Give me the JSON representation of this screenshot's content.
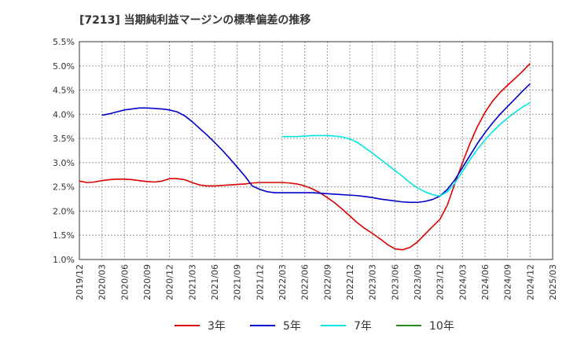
{
  "title": "[7213]  当期純利益マージンの標準偏差の推移",
  "chart_data": {
    "type": "line",
    "title": "[7213]  当期純利益マージンの標準偏差の推移",
    "xlabel": "",
    "ylabel": "",
    "x_ticks": [
      "2019/12",
      "2020/03",
      "2020/06",
      "2020/09",
      "2020/12",
      "2021/03",
      "2021/06",
      "2021/09",
      "2021/12",
      "2022/03",
      "2022/06",
      "2022/09",
      "2022/12",
      "2023/03",
      "2023/06",
      "2023/09",
      "2023/12",
      "2024/03",
      "2024/06",
      "2024/09",
      "2024/12",
      "2025/03"
    ],
    "y_ticks": [
      "1.0%",
      "1.5%",
      "2.0%",
      "2.5%",
      "3.0%",
      "3.5%",
      "4.0%",
      "4.5%",
      "5.0%",
      "5.5%"
    ],
    "ylim": [
      1.0,
      5.5
    ],
    "grid": true,
    "legend_position": "bottom",
    "series": [
      {
        "name": "3年",
        "color": "#dd0000",
        "points": [
          [
            "2019/12",
            2.62
          ],
          [
            "2020/01",
            2.59
          ],
          [
            "2020/02",
            2.6
          ],
          [
            "2020/03",
            2.63
          ],
          [
            "2020/04",
            2.65
          ],
          [
            "2020/05",
            2.66
          ],
          [
            "2020/06",
            2.66
          ],
          [
            "2020/07",
            2.65
          ],
          [
            "2020/08",
            2.63
          ],
          [
            "2020/09",
            2.61
          ],
          [
            "2020/10",
            2.6
          ],
          [
            "2020/11",
            2.62
          ],
          [
            "2020/12",
            2.67
          ],
          [
            "2021/01",
            2.67
          ],
          [
            "2021/02",
            2.65
          ],
          [
            "2021/03",
            2.59
          ],
          [
            "2021/04",
            2.54
          ],
          [
            "2021/05",
            2.52
          ],
          [
            "2021/06",
            2.52
          ],
          [
            "2021/07",
            2.53
          ],
          [
            "2021/08",
            2.54
          ],
          [
            "2021/09",
            2.55
          ],
          [
            "2021/10",
            2.56
          ],
          [
            "2021/11",
            2.58
          ],
          [
            "2021/12",
            2.59
          ],
          [
            "2022/01",
            2.59
          ],
          [
            "2022/02",
            2.59
          ],
          [
            "2022/03",
            2.59
          ],
          [
            "2022/04",
            2.58
          ],
          [
            "2022/05",
            2.56
          ],
          [
            "2022/06",
            2.52
          ],
          [
            "2022/07",
            2.46
          ],
          [
            "2022/08",
            2.38
          ],
          [
            "2022/09",
            2.28
          ],
          [
            "2022/10",
            2.17
          ],
          [
            "2022/11",
            2.04
          ],
          [
            "2022/12",
            1.9
          ],
          [
            "2023/01",
            1.76
          ],
          [
            "2023/02",
            1.64
          ],
          [
            "2023/03",
            1.54
          ],
          [
            "2023/04",
            1.43
          ],
          [
            "2023/05",
            1.31
          ],
          [
            "2023/06",
            1.22
          ],
          [
            "2023/07",
            1.2
          ],
          [
            "2023/08",
            1.25
          ],
          [
            "2023/09",
            1.36
          ],
          [
            "2023/10",
            1.52
          ],
          [
            "2023/11",
            1.68
          ],
          [
            "2023/12",
            1.83
          ],
          [
            "2024/01",
            2.13
          ],
          [
            "2024/02",
            2.58
          ],
          [
            "2024/03",
            3.0
          ],
          [
            "2024/04",
            3.4
          ],
          [
            "2024/05",
            3.75
          ],
          [
            "2024/06",
            4.04
          ],
          [
            "2024/07",
            4.27
          ],
          [
            "2024/08",
            4.45
          ],
          [
            "2024/09",
            4.6
          ],
          [
            "2024/10",
            4.74
          ],
          [
            "2024/11",
            4.89
          ],
          [
            "2024/12",
            5.05
          ]
        ]
      },
      {
        "name": "5年",
        "color": "#0000cc",
        "points": [
          [
            "2020/03",
            3.98
          ],
          [
            "2020/04",
            4.01
          ],
          [
            "2020/05",
            4.05
          ],
          [
            "2020/06",
            4.09
          ],
          [
            "2020/07",
            4.11
          ],
          [
            "2020/08",
            4.13
          ],
          [
            "2020/09",
            4.13
          ],
          [
            "2020/10",
            4.12
          ],
          [
            "2020/11",
            4.11
          ],
          [
            "2020/12",
            4.09
          ],
          [
            "2021/01",
            4.05
          ],
          [
            "2021/02",
            3.97
          ],
          [
            "2021/03",
            3.85
          ],
          [
            "2021/04",
            3.71
          ],
          [
            "2021/05",
            3.57
          ],
          [
            "2021/06",
            3.42
          ],
          [
            "2021/07",
            3.26
          ],
          [
            "2021/08",
            3.09
          ],
          [
            "2021/09",
            2.91
          ],
          [
            "2021/10",
            2.73
          ],
          [
            "2021/11",
            2.52
          ],
          [
            "2021/12",
            2.45
          ],
          [
            "2022/01",
            2.4
          ],
          [
            "2022/02",
            2.38
          ],
          [
            "2022/03",
            2.38
          ],
          [
            "2022/04",
            2.38
          ],
          [
            "2022/05",
            2.38
          ],
          [
            "2022/06",
            2.38
          ],
          [
            "2022/07",
            2.38
          ],
          [
            "2022/08",
            2.37
          ],
          [
            "2022/09",
            2.36
          ],
          [
            "2022/10",
            2.35
          ],
          [
            "2022/11",
            2.34
          ],
          [
            "2022/12",
            2.33
          ],
          [
            "2023/01",
            2.32
          ],
          [
            "2023/02",
            2.3
          ],
          [
            "2023/03",
            2.28
          ],
          [
            "2023/04",
            2.25
          ],
          [
            "2023/05",
            2.23
          ],
          [
            "2023/06",
            2.21
          ],
          [
            "2023/07",
            2.19
          ],
          [
            "2023/08",
            2.18
          ],
          [
            "2023/09",
            2.18
          ],
          [
            "2023/10",
            2.2
          ],
          [
            "2023/11",
            2.24
          ],
          [
            "2023/12",
            2.31
          ],
          [
            "2024/01",
            2.45
          ],
          [
            "2024/02",
            2.65
          ],
          [
            "2024/03",
            2.9
          ],
          [
            "2024/04",
            3.15
          ],
          [
            "2024/05",
            3.4
          ],
          [
            "2024/06",
            3.62
          ],
          [
            "2024/07",
            3.82
          ],
          [
            "2024/08",
            4.0
          ],
          [
            "2024/09",
            4.16
          ],
          [
            "2024/10",
            4.32
          ],
          [
            "2024/11",
            4.48
          ],
          [
            "2024/12",
            4.63
          ]
        ]
      },
      {
        "name": "7年",
        "color": "#00e5e5",
        "points": [
          [
            "2022/03",
            3.54
          ],
          [
            "2022/04",
            3.54
          ],
          [
            "2022/05",
            3.54
          ],
          [
            "2022/06",
            3.55
          ],
          [
            "2022/07",
            3.56
          ],
          [
            "2022/08",
            3.56
          ],
          [
            "2022/09",
            3.56
          ],
          [
            "2022/10",
            3.55
          ],
          [
            "2022/11",
            3.53
          ],
          [
            "2022/12",
            3.49
          ],
          [
            "2023/01",
            3.42
          ],
          [
            "2023/02",
            3.31
          ],
          [
            "2023/03",
            3.2
          ],
          [
            "2023/04",
            3.08
          ],
          [
            "2023/05",
            2.96
          ],
          [
            "2023/06",
            2.84
          ],
          [
            "2023/07",
            2.72
          ],
          [
            "2023/08",
            2.59
          ],
          [
            "2023/09",
            2.48
          ],
          [
            "2023/10",
            2.4
          ],
          [
            "2023/11",
            2.34
          ],
          [
            "2023/12",
            2.31
          ],
          [
            "2024/01",
            2.4
          ],
          [
            "2024/02",
            2.58
          ],
          [
            "2024/03",
            2.82
          ],
          [
            "2024/04",
            3.06
          ],
          [
            "2024/05",
            3.28
          ],
          [
            "2024/06",
            3.47
          ],
          [
            "2024/07",
            3.64
          ],
          [
            "2024/08",
            3.79
          ],
          [
            "2024/09",
            3.92
          ],
          [
            "2024/10",
            4.04
          ],
          [
            "2024/11",
            4.15
          ],
          [
            "2024/12",
            4.24
          ]
        ]
      },
      {
        "name": "10年",
        "color": "#228b22",
        "points": []
      }
    ]
  }
}
